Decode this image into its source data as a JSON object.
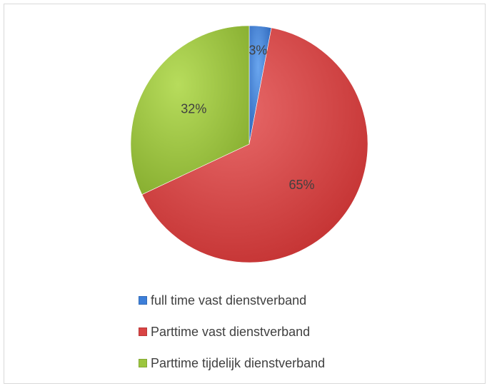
{
  "chart_data": {
    "type": "pie",
    "categories": [
      "full time vast dienstverband",
      "Parttime vast dienstverband",
      "Parttime tijdelijk dienstverband"
    ],
    "values": [
      3,
      65,
      32
    ],
    "labels": [
      "3%",
      "65%",
      "32%"
    ],
    "colors": [
      "#3d7fd9",
      "#d94444",
      "#9cc63e"
    ],
    "legend": "bottom",
    "title": ""
  }
}
